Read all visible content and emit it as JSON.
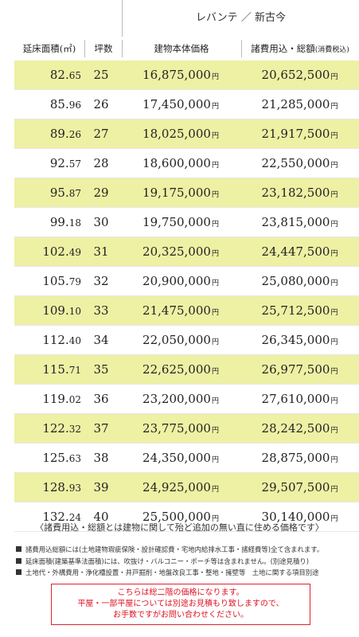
{
  "header": {
    "model_name": "レバンテ ／ 新古今",
    "columns": {
      "area": "延床面積(㎡)",
      "tsubo": "坪数",
      "price": "建物本体価格",
      "total_main": "諸費用込・総額",
      "total_sub": "(消費税込)"
    }
  },
  "yen_unit": "円",
  "rows": [
    {
      "area_int": "82.",
      "area_dec": "65",
      "tsubo": "25",
      "price": "16,875,000",
      "total": "20,652,500"
    },
    {
      "area_int": "85.",
      "area_dec": "96",
      "tsubo": "26",
      "price": "17,450,000",
      "total": "21,285,000"
    },
    {
      "area_int": "89.",
      "area_dec": "26",
      "tsubo": "27",
      "price": "18,025,000",
      "total": "21,917,500"
    },
    {
      "area_int": "92.",
      "area_dec": "57",
      "tsubo": "28",
      "price": "18,600,000",
      "total": "22,550,000"
    },
    {
      "area_int": "95.",
      "area_dec": "87",
      "tsubo": "29",
      "price": "19,175,000",
      "total": "23,182,500"
    },
    {
      "area_int": "99.",
      "area_dec": "18",
      "tsubo": "30",
      "price": "19,750,000",
      "total": "23,815,000"
    },
    {
      "area_int": "102.",
      "area_dec": "49",
      "tsubo": "31",
      "price": "20,325,000",
      "total": "24,447,500"
    },
    {
      "area_int": "105.",
      "area_dec": "79",
      "tsubo": "32",
      "price": "20,900,000",
      "total": "25,080,000"
    },
    {
      "area_int": "109.",
      "area_dec": "10",
      "tsubo": "33",
      "price": "21,475,000",
      "total": "25,712,500"
    },
    {
      "area_int": "112.",
      "area_dec": "40",
      "tsubo": "34",
      "price": "22,050,000",
      "total": "26,345,000"
    },
    {
      "area_int": "115.",
      "area_dec": "71",
      "tsubo": "35",
      "price": "22,625,000",
      "total": "26,977,500"
    },
    {
      "area_int": "119.",
      "area_dec": "02",
      "tsubo": "36",
      "price": "23,200,000",
      "total": "27,610,000"
    },
    {
      "area_int": "122.",
      "area_dec": "32",
      "tsubo": "37",
      "price": "23,775,000",
      "total": "28,242,500"
    },
    {
      "area_int": "125.",
      "area_dec": "63",
      "tsubo": "38",
      "price": "24,350,000",
      "total": "28,875,000"
    },
    {
      "area_int": "128.",
      "area_dec": "93",
      "tsubo": "39",
      "price": "24,925,000",
      "total": "29,507,500"
    },
    {
      "area_int": "132.",
      "area_dec": "24",
      "tsubo": "40",
      "price": "25,500,000",
      "total": "30,140,000"
    }
  ],
  "caption": "〈諸費用込・総額とは建物に関して殆ど追加の無い直に住める価格です〉",
  "notes": [
    "諸費用込総額には(土地建物瑕疵保険・設計確認費・宅地内給排水工事・諸経費等)全て含まれます。",
    "延床面積(建築基準法面積)には、吹抜け・バルコニー・ポーチ等は含まれません。(別途見積り)",
    "土地代・外構費用・浄化槽設置・井戸掘削・地盤改良工事・整地・擁壁等　土地に関する項目別途"
  ],
  "alert": {
    "line1": "こちらは総二階の価格になります。",
    "line2": "平屋・一部平屋については別途お見積もり致しますので、",
    "line3": "お手数ですがお問い合わせください。"
  }
}
